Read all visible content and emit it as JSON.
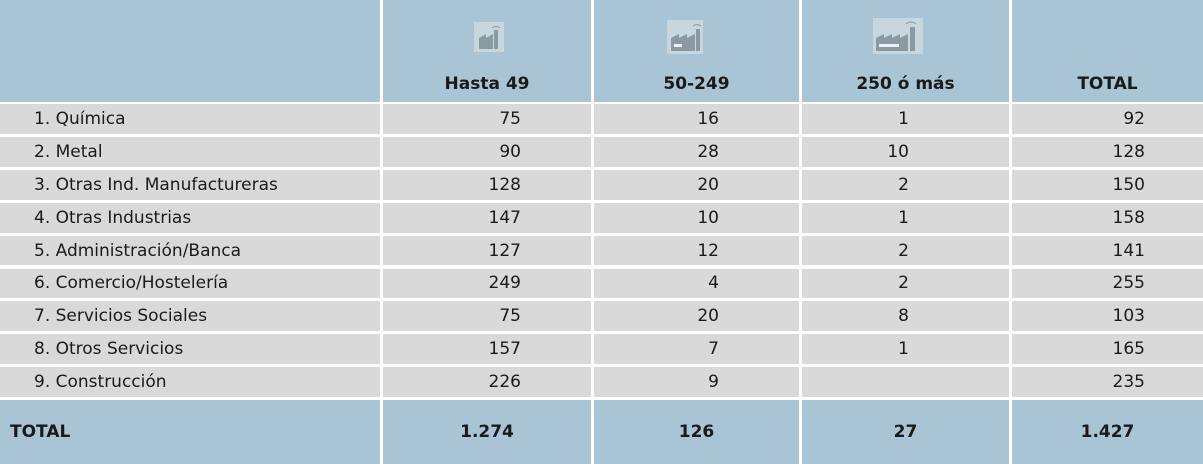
{
  "table": {
    "columns": [
      "Hasta 49",
      "50-249",
      "250 ó más",
      "TOTAL"
    ],
    "rows": [
      {
        "label": "1. Química",
        "values": [
          "75",
          "16",
          "1",
          "92"
        ]
      },
      {
        "label": "2. Metal",
        "values": [
          "90",
          "28",
          "10",
          "128"
        ]
      },
      {
        "label": "3. Otras Ind. Manufactureras",
        "values": [
          "128",
          "20",
          "2",
          "150"
        ]
      },
      {
        "label": "4. Otras Industrias",
        "values": [
          "147",
          "10",
          "1",
          "158"
        ]
      },
      {
        "label": "5. Administración/Banca",
        "values": [
          "127",
          "12",
          "2",
          "141"
        ]
      },
      {
        "label": "6. Comercio/Hostelería",
        "values": [
          "249",
          "4",
          "2",
          "255"
        ]
      },
      {
        "label": "7. Servicios Sociales",
        "values": [
          "75",
          "20",
          "8",
          "103"
        ]
      },
      {
        "label": "8. Otros Servicios",
        "values": [
          "157",
          "7",
          "1",
          "165"
        ]
      },
      {
        "label": "9. Construcción",
        "values": [
          "226",
          "9",
          null,
          "235"
        ]
      }
    ],
    "total": {
      "label": "TOTAL",
      "values": [
        "1.274",
        "126",
        "27",
        "1.427"
      ]
    }
  }
}
